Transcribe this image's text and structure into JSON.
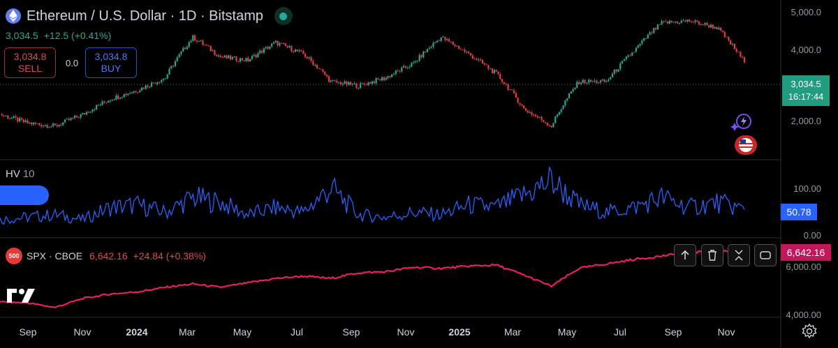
{
  "header": {
    "symbol_title": "Ethereum / U.S. Dollar · 1D · Bitstamp",
    "last_price": "3,034.5",
    "change": "+12.5 (+0.41%)"
  },
  "trade": {
    "sell_price": "3,034.8",
    "sell_label": "SELL",
    "spread": "0.0",
    "buy_price": "3,034.8",
    "buy_label": "BUY"
  },
  "price_axis": [
    "5,000.0",
    "4,000.0",
    "2,000.0"
  ],
  "price_tag": {
    "price": "3,034.5",
    "countdown": "16:17:44"
  },
  "hv": {
    "name": "HV",
    "length": "10",
    "axis": [
      "100.00",
      "0.00"
    ],
    "value": "50.78"
  },
  "spx": {
    "badge": "500",
    "symbol": "SPX · CBOE",
    "last": "6,642.16",
    "change": "+24.84 (+0.38%)",
    "axis": [
      "6,000.00",
      "4,000.00"
    ],
    "tag": "6,642.16"
  },
  "time_axis": [
    {
      "label": "Sep",
      "bold": false
    },
    {
      "label": "Nov",
      "bold": false
    },
    {
      "label": "2024",
      "bold": true
    },
    {
      "label": "Mar",
      "bold": false
    },
    {
      "label": "May",
      "bold": false
    },
    {
      "label": "Jul",
      "bold": false
    },
    {
      "label": "Sep",
      "bold": false
    },
    {
      "label": "Nov",
      "bold": false
    },
    {
      "label": "2025",
      "bold": true
    },
    {
      "label": "Mar",
      "bold": false
    },
    {
      "label": "May",
      "bold": false
    },
    {
      "label": "Jul",
      "bold": false
    },
    {
      "label": "Sep",
      "bold": false
    },
    {
      "label": "Nov",
      "bold": false
    }
  ],
  "colors": {
    "up": "#22ab94",
    "down": "#f23645",
    "hv": "#2962ff",
    "spx": "#e91e63"
  },
  "chart_data": [
    {
      "type": "line",
      "title": "Ethereum / U.S. Dollar · 1D · Bitstamp",
      "style": "candlestick",
      "x": [
        "2023-08",
        "2023-09",
        "2023-10",
        "2023-11",
        "2023-12",
        "2024-01",
        "2024-02",
        "2024-03",
        "2024-04",
        "2024-05",
        "2024-06",
        "2024-07",
        "2024-08",
        "2024-09",
        "2024-10",
        "2024-11",
        "2024-12",
        "2025-01",
        "2025-02",
        "2025-03",
        "2025-04",
        "2025-05",
        "2025-06",
        "2025-07",
        "2025-08",
        "2025-09",
        "2025-10",
        "2025-11"
      ],
      "series": [
        {
          "values": [
            1800,
            1650,
            1600,
            1800,
            2100,
            2300,
            2600,
            3900,
            3200,
            3100,
            3700,
            3300,
            2500,
            2400,
            2600,
            3000,
            3900,
            3300,
            2700,
            1900,
            1600,
            2500,
            2500,
            3400,
            4500,
            4600,
            4300,
            3034.5
          ]
        }
      ],
      "ylim": [
        1400,
        5000
      ],
      "log": true
    },
    {
      "type": "line",
      "title": "HV 10",
      "x": [
        "2023-08",
        "2023-09",
        "2023-10",
        "2023-11",
        "2023-12",
        "2024-01",
        "2024-02",
        "2024-03",
        "2024-04",
        "2024-05",
        "2024-06",
        "2024-07",
        "2024-08",
        "2024-09",
        "2024-10",
        "2024-11",
        "2024-12",
        "2025-01",
        "2025-02",
        "2025-03",
        "2025-04",
        "2025-05",
        "2025-06",
        "2025-07",
        "2025-08",
        "2025-09",
        "2025-10",
        "2025-11"
      ],
      "series": [
        {
          "values": [
            30,
            35,
            40,
            30,
            55,
            60,
            45,
            75,
            65,
            40,
            55,
            45,
            95,
            40,
            35,
            45,
            40,
            60,
            55,
            80,
            110,
            60,
            45,
            55,
            75,
            55,
            65,
            50.78
          ]
        }
      ],
      "ylim": [
        0,
        140
      ]
    },
    {
      "type": "line",
      "title": "SPX · CBOE",
      "x": [
        "2023-08",
        "2023-09",
        "2023-10",
        "2023-11",
        "2023-12",
        "2024-01",
        "2024-02",
        "2024-03",
        "2024-04",
        "2024-05",
        "2024-06",
        "2024-07",
        "2024-08",
        "2024-09",
        "2024-10",
        "2024-11",
        "2024-12",
        "2025-01",
        "2025-02",
        "2025-03",
        "2025-04",
        "2025-05",
        "2025-06",
        "2025-07",
        "2025-08",
        "2025-09",
        "2025-10",
        "2025-11"
      ],
      "series": [
        {
          "values": [
            4400,
            4350,
            4150,
            4550,
            4750,
            4850,
            5050,
            5200,
            5050,
            5250,
            5450,
            5550,
            5450,
            5700,
            5750,
            5950,
            5900,
            6000,
            6050,
            5600,
            5100,
            5900,
            6100,
            6300,
            6450,
            6600,
            6700,
            6642.16
          ]
        }
      ],
      "ylim": [
        3800,
        6800
      ]
    }
  ]
}
